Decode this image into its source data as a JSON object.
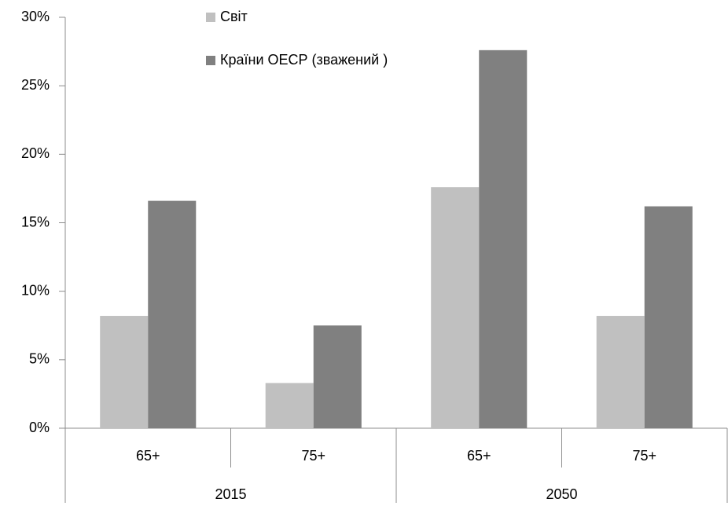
{
  "chart_data": {
    "type": "bar",
    "categories": [
      "65+",
      "75+",
      "65+",
      "75+"
    ],
    "category_groups": [
      "2015",
      "2050"
    ],
    "series": [
      {
        "name": "Світ",
        "color": "#c0c0c0",
        "values": [
          8.2,
          3.3,
          17.6,
          8.2
        ]
      },
      {
        "name": "Країни ОЕСР (зважений )",
        "color": "#808080",
        "values": [
          16.6,
          7.5,
          27.6,
          16.2
        ]
      }
    ],
    "ylim": [
      0,
      30
    ],
    "yticks": [
      {
        "value": 0,
        "label": "0%"
      },
      {
        "value": 5,
        "label": "5%"
      },
      {
        "value": 10,
        "label": "10%"
      },
      {
        "value": 15,
        "label": "15%"
      },
      {
        "value": 20,
        "label": "20%"
      },
      {
        "value": 25,
        "label": "25%"
      },
      {
        "value": 30,
        "label": "30%"
      }
    ],
    "legend": "top"
  }
}
